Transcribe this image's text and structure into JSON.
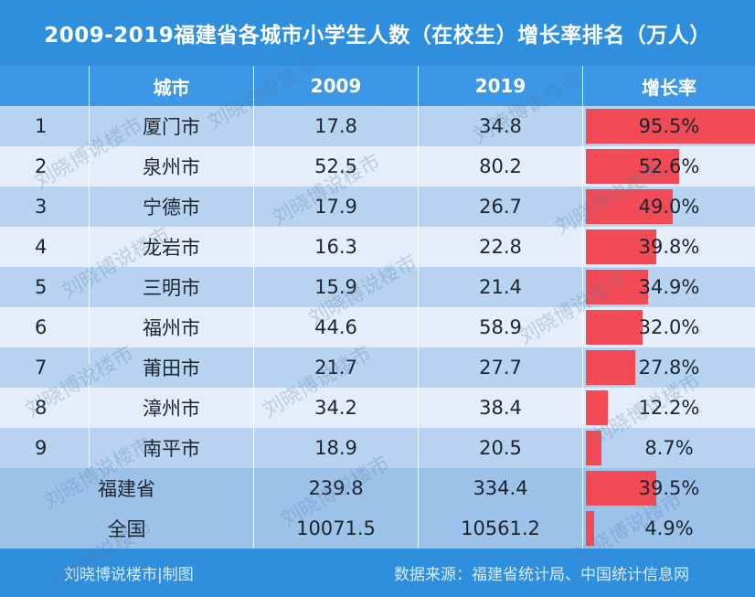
{
  "title": "2009-2019福建省各城市小学生人数（在校生）增长率排名（万人）",
  "header": {
    "city": "城市",
    "y2009": "2009",
    "y2019": "2019",
    "rate": "增长率"
  },
  "rows": [
    {
      "rank": "1",
      "city": "厦门市",
      "y2009": "17.8",
      "y2019": "34.8",
      "rate_label": "95.5%",
      "rate": 95.5
    },
    {
      "rank": "2",
      "city": "泉州市",
      "y2009": "52.5",
      "y2019": "80.2",
      "rate_label": "52.6%",
      "rate": 52.6
    },
    {
      "rank": "3",
      "city": "宁德市",
      "y2009": "17.9",
      "y2019": "26.7",
      "rate_label": "49.0%",
      "rate": 49.0
    },
    {
      "rank": "4",
      "city": "龙岩市",
      "y2009": "16.3",
      "y2019": "22.8",
      "rate_label": "39.8%",
      "rate": 39.8
    },
    {
      "rank": "5",
      "city": "三明市",
      "y2009": "15.9",
      "y2019": "21.4",
      "rate_label": "34.9%",
      "rate": 34.9
    },
    {
      "rank": "6",
      "city": "福州市",
      "y2009": "44.6",
      "y2019": "58.9",
      "rate_label": "32.0%",
      "rate": 32.0
    },
    {
      "rank": "7",
      "city": "莆田市",
      "y2009": "21.7",
      "y2019": "27.7",
      "rate_label": "27.8%",
      "rate": 27.8
    },
    {
      "rank": "8",
      "city": "漳州市",
      "y2009": "34.2",
      "y2019": "38.4",
      "rate_label": "12.2%",
      "rate": 12.2
    },
    {
      "rank": "9",
      "city": "南平市",
      "y2009": "18.9",
      "y2019": "20.5",
      "rate_label": "8.7%",
      "rate": 8.7
    }
  ],
  "totals": [
    {
      "name": "福建省",
      "y2009": "239.8",
      "y2019": "334.4",
      "rate_label": "39.5%",
      "rate": 39.5
    },
    {
      "name": "全国",
      "y2009": "10071.5",
      "y2019": "10561.2",
      "rate_label": "4.9%",
      "rate": 4.9
    }
  ],
  "footer": {
    "left": "刘晓博说楼市|制图",
    "right": "数据来源：福建省统计局、中国统计信息网"
  },
  "watermark": "刘晓博说楼市",
  "colors": {
    "background": "#2f8fdd",
    "header": "#3c98e6",
    "row_dark": "#b7d3f0",
    "row_light": "#e4eefa",
    "bar": "#f24b55"
  },
  "chart_data": {
    "type": "table",
    "title": "2009-2019福建省各城市小学生人数（在校生）增长率排名（万人）",
    "columns": [
      "城市",
      "2009",
      "2019",
      "增长率"
    ],
    "categories": [
      "厦门市",
      "泉州市",
      "宁德市",
      "龙岩市",
      "三明市",
      "福州市",
      "莆田市",
      "漳州市",
      "南平市",
      "福建省",
      "全国"
    ],
    "series": [
      {
        "name": "2009",
        "values": [
          17.8,
          52.5,
          17.9,
          16.3,
          15.9,
          44.6,
          21.7,
          34.2,
          18.9,
          239.8,
          10071.5
        ]
      },
      {
        "name": "2019",
        "values": [
          34.8,
          80.2,
          26.7,
          22.8,
          21.4,
          58.9,
          27.7,
          38.4,
          20.5,
          334.4,
          10561.2
        ]
      },
      {
        "name": "增长率",
        "values": [
          95.5,
          52.6,
          49.0,
          39.8,
          34.9,
          32.0,
          27.8,
          12.2,
          8.7,
          39.5,
          4.9
        ]
      }
    ]
  }
}
